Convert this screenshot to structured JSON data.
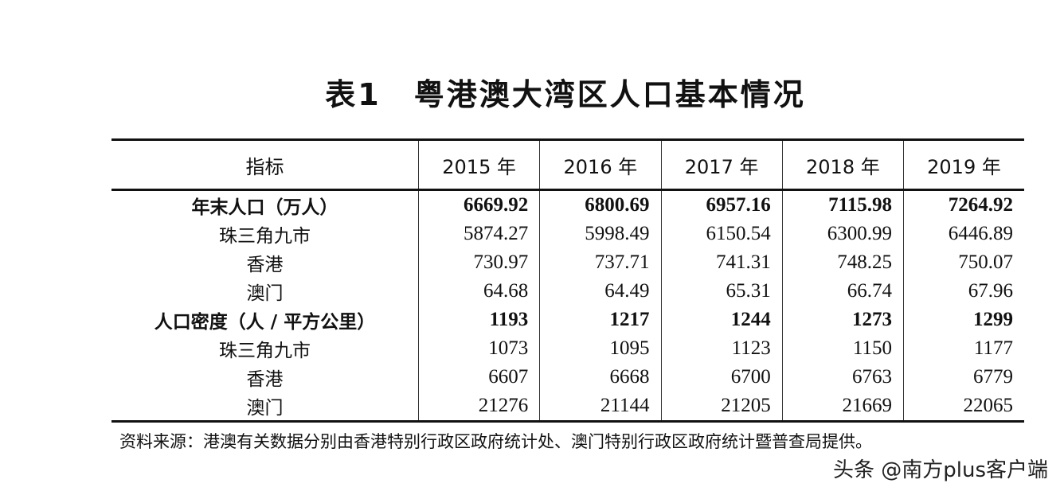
{
  "title": "表1　粤港澳大湾区人口基本情况",
  "table": {
    "headers": [
      "指标",
      "2015 年",
      "2016 年",
      "2017 年",
      "2018 年",
      "2019 年"
    ],
    "rows": [
      {
        "label": "年末人口（万人）",
        "bold": true,
        "values": [
          "6669.92",
          "6800.69",
          "6957.16",
          "7115.98",
          "7264.92"
        ]
      },
      {
        "label": "珠三角九市",
        "values": [
          "5874.27",
          "5998.49",
          "6150.54",
          "6300.99",
          "6446.89"
        ]
      },
      {
        "label": "香港",
        "values": [
          "730.97",
          "737.71",
          "741.31",
          "748.25",
          "750.07"
        ]
      },
      {
        "label": "澳门",
        "values": [
          "64.68",
          "64.49",
          "65.31",
          "66.74",
          "67.96"
        ]
      },
      {
        "label": "人口密度（人 / 平方公里）",
        "bold": true,
        "values": [
          "1193",
          "1217",
          "1244",
          "1273",
          "1299"
        ]
      },
      {
        "label": "珠三角九市",
        "values": [
          "1073",
          "1095",
          "1123",
          "1150",
          "1177"
        ]
      },
      {
        "label": "香港",
        "values": [
          "6607",
          "6668",
          "6700",
          "6763",
          "6779"
        ]
      },
      {
        "label": "澳门",
        "values": [
          "21276",
          "21144",
          "21205",
          "21669",
          "22065"
        ]
      }
    ]
  },
  "note": "资料来源：港澳有关数据分别由香港特别行政区政府统计处、澳门特别行政区政府统计暨普查局提供。",
  "watermark": "头条 @南方plus客户端"
}
